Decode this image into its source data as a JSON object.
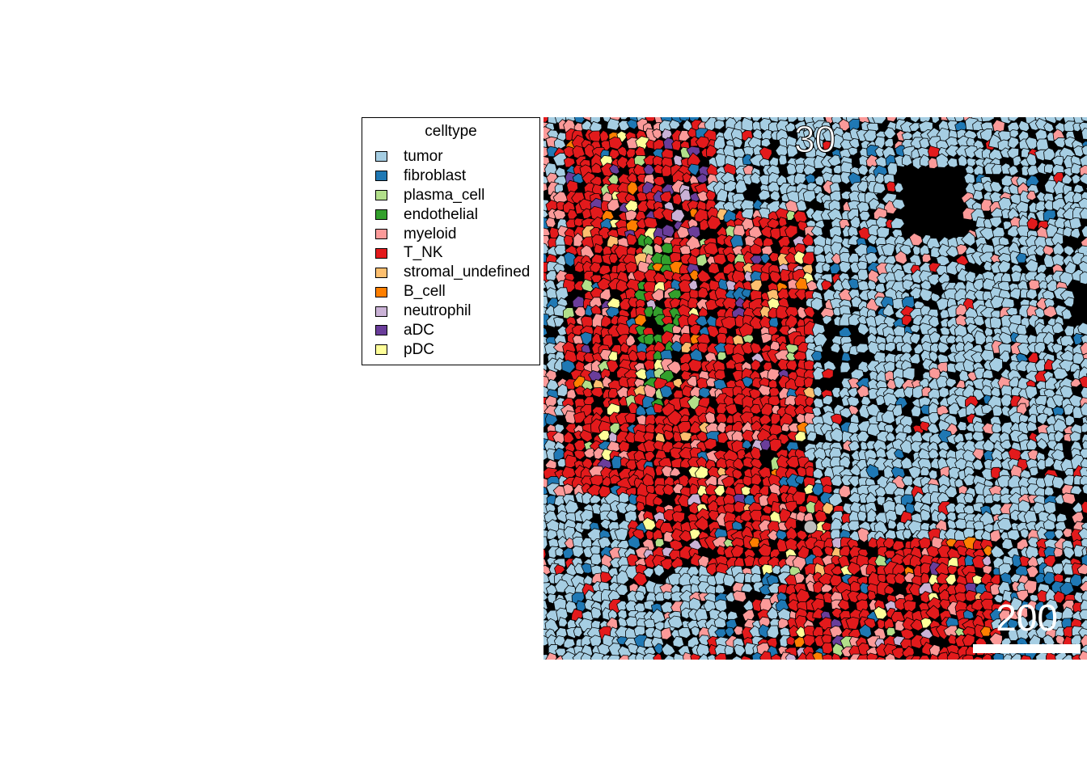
{
  "legend": {
    "title": "celltype",
    "items": [
      {
        "label": "tumor",
        "color": "#a6cee3"
      },
      {
        "label": "fibroblast",
        "color": "#1f78b4"
      },
      {
        "label": "plasma_cell",
        "color": "#b2df8a"
      },
      {
        "label": "endothelial",
        "color": "#33a02c"
      },
      {
        "label": "myeloid",
        "color": "#fb9a99"
      },
      {
        "label": "T_NK",
        "color": "#e31a1c"
      },
      {
        "label": "stromal_undefined",
        "color": "#fdbf6f"
      },
      {
        "label": "B_cell",
        "color": "#ff7f00"
      },
      {
        "label": "neutrophil",
        "color": "#cab2d6"
      },
      {
        "label": "aDC",
        "color": "#6a3d9a"
      },
      {
        "label": "pDC",
        "color": "#ffff99"
      }
    ]
  },
  "panel": {
    "label": "30",
    "scale_bar_label": "200"
  }
}
